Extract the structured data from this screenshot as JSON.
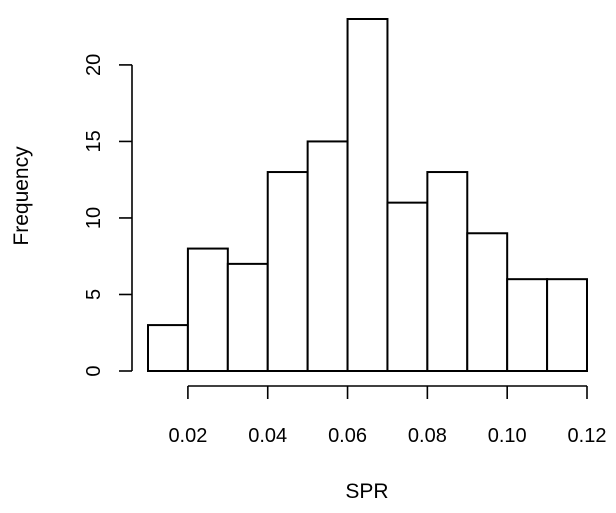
{
  "chart_data": {
    "type": "bar",
    "title": "",
    "xlabel": "SPR",
    "ylabel": "Frequency",
    "bins": [
      {
        "start": 0.01,
        "end": 0.02,
        "count": 3
      },
      {
        "start": 0.02,
        "end": 0.03,
        "count": 8
      },
      {
        "start": 0.03,
        "end": 0.04,
        "count": 7
      },
      {
        "start": 0.04,
        "end": 0.05,
        "count": 13
      },
      {
        "start": 0.05,
        "end": 0.06,
        "count": 15
      },
      {
        "start": 0.06,
        "end": 0.07,
        "count": 23
      },
      {
        "start": 0.07,
        "end": 0.08,
        "count": 11
      },
      {
        "start": 0.08,
        "end": 0.09,
        "count": 13
      },
      {
        "start": 0.09,
        "end": 0.1,
        "count": 9
      },
      {
        "start": 0.1,
        "end": 0.11,
        "count": 6
      },
      {
        "start": 0.11,
        "end": 0.12,
        "count": 6
      }
    ],
    "xticks": [
      0.02,
      0.04,
      0.06,
      0.08,
      0.1,
      0.12
    ],
    "xtick_labels": [
      "0.02",
      "0.04",
      "0.06",
      "0.08",
      "0.10",
      "0.12"
    ],
    "yticks": [
      0,
      5,
      10,
      15,
      20
    ],
    "ytick_labels": [
      "0",
      "5",
      "10",
      "15",
      "20"
    ],
    "xlim": [
      0.01,
      0.12
    ],
    "ylim": [
      0,
      23
    ],
    "grid": false,
    "bar_fill": "#ffffff",
    "bar_stroke": "#000000"
  }
}
